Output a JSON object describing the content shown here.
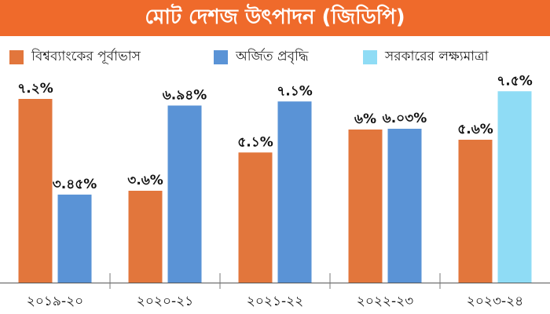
{
  "title": "মোট দেশজ উৎপাদন (জিডিপি)",
  "colors": {
    "header": "#ef6a2b",
    "forecast": "#e2763c",
    "achieved": "#5a93d6",
    "target": "#8fdcf5"
  },
  "legend": [
    {
      "label": "বিশ্বব্যাংকের পূর্বাভাস",
      "color": "#e2763c"
    },
    {
      "label": "অর্জিত প্রবৃদ্ধি",
      "color": "#5a93d6"
    },
    {
      "label": "সরকারের লক্ষ্যমাত্রা",
      "color": "#8fdcf5"
    }
  ],
  "chart_data": {
    "type": "bar",
    "title": "মোট দেশজ উৎপাদন (জিডিপি)",
    "categories": [
      "২০১৯-২০",
      "২০২০-২১",
      "২০২১-২২",
      "২০২২-২৩",
      "২০২৩-২৪"
    ],
    "series": [
      {
        "name": "বিশ্বব্যাংকের পূর্বাভাস",
        "color": "#e2763c",
        "values": [
          7.2,
          3.6,
          5.1,
          6.0,
          5.6
        ],
        "labels": [
          "৭.২%",
          "৩.৬%",
          "৫.১%",
          "৬%",
          "৫.৬%"
        ]
      },
      {
        "name": "অর্জিত প্রবৃদ্ধি",
        "color": "#5a93d6",
        "values": [
          3.45,
          6.94,
          7.1,
          6.03,
          null
        ],
        "labels": [
          "৩.৪৫%",
          "৬.৯৪%",
          "৭.১%",
          "৬.০৩%",
          null
        ]
      },
      {
        "name": "সরকারের লক্ষ্যমাত্রা",
        "color": "#8fdcf5",
        "values": [
          null,
          null,
          null,
          null,
          7.5
        ],
        "labels": [
          null,
          null,
          null,
          null,
          "৭.৫%"
        ]
      }
    ],
    "ylim": [
      0,
      8
    ],
    "grid": false,
    "legend_position": "top"
  }
}
